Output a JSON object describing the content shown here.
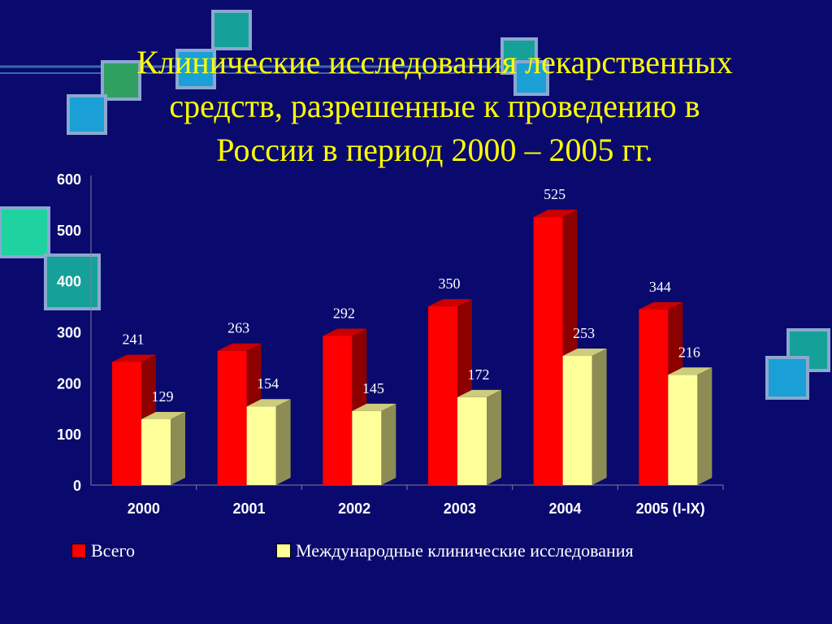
{
  "slide": {
    "title_lines": [
      "Клинические исследования лекарственных",
      "средств, разрешенные к проведению в",
      "России в период 2000 – 2005 гг."
    ]
  },
  "colors": {
    "background": "#0a0a6e",
    "title": "#ffff00",
    "series_total": "#ff0000",
    "series_intl": "#ffff99",
    "deco_teal": "#16a09a",
    "deco_blue": "#1a9fd6",
    "deco_green": "#2fa060",
    "deco_mint": "#1fd3a0"
  },
  "chart_data": {
    "type": "bar",
    "categories": [
      "2000",
      "2001",
      "2002",
      "2003",
      "2004",
      "2005 (I-IX)"
    ],
    "series": [
      {
        "name": "Всего",
        "values": [
          241,
          263,
          292,
          350,
          525,
          344
        ]
      },
      {
        "name": "Международные клинические исследования",
        "values": [
          129,
          154,
          145,
          172,
          253,
          216
        ]
      }
    ],
    "ylim": [
      0,
      600
    ],
    "yticks": [
      "0",
      "100",
      "200",
      "300",
      "400",
      "500",
      "600"
    ],
    "legend_position": "bottom",
    "grid": false,
    "style": "3d-bar"
  }
}
